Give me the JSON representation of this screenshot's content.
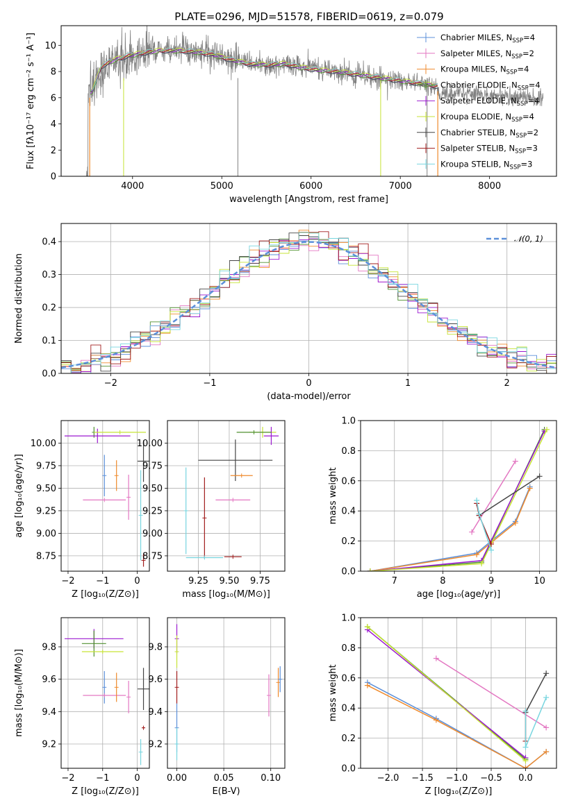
{
  "title": "PLATE=0296, MJD=51578, FIBERID=0619, z=0.079",
  "colors": {
    "Chabrier MILES": "#5b8fd9",
    "Salpeter MILES": "#e377c2",
    "Kroupa MILES": "#ef8a2c",
    "Chabrier ELODIE": "#4f8f2f",
    "Salpeter ELODIE": "#9b19d0",
    "Kroupa ELODIE": "#c6e334",
    "Chabrier STELIB": "#444444",
    "Salpeter STELIB": "#a11c1c",
    "Kroupa STELIB": "#77d5df",
    "normal": "#5b8fd9",
    "data": "#808080"
  },
  "chart_data": [
    {
      "type": "line",
      "panel": "spectrum",
      "title": "PLATE=0296, MJD=51578, FIBERID=0619, z=0.079",
      "xlabel": "wavelength [Angstrom, rest frame]",
      "ylabel": "Flux [fλ10⁻¹⁷ erg cm⁻² s⁻¹ A⁻¹]",
      "xlim": [
        3200,
        8750
      ],
      "ylim": [
        0,
        11.5
      ],
      "xticks": [
        4000,
        5000,
        6000,
        7000,
        8000
      ],
      "yticks": [
        0,
        2,
        4,
        6,
        8,
        10
      ],
      "legend_position": "top-right",
      "continuum": {
        "x": [
          3500,
          3550,
          3650,
          3800,
          3950,
          4100,
          4300,
          4500,
          4700,
          4900,
          5100,
          5300,
          5500,
          5700,
          5900,
          6100,
          6300,
          6500,
          6700,
          6900,
          7100,
          7300,
          7400
        ],
        "y": [
          6.3,
          6.5,
          8.4,
          8.9,
          9.2,
          9.4,
          9.6,
          9.6,
          9.5,
          9.3,
          8.9,
          8.6,
          8.5,
          8.6,
          8.3,
          8.1,
          8.0,
          7.8,
          7.6,
          7.4,
          7.2,
          7.0,
          6.9
        ]
      },
      "series": [
        {
          "name": "Chabrier MILES",
          "label": "Chabrier MILES, N",
          "n_ssp": "=4"
        },
        {
          "name": "Salpeter MILES",
          "label": "Salpeter MILES, N",
          "n_ssp": "=2"
        },
        {
          "name": "Kroupa MILES",
          "label": "Kroupa MILES, N",
          "n_ssp": "=4"
        },
        {
          "name": "Chabrier ELODIE",
          "label": "Chabrier ELODIE, N",
          "n_ssp": "=4"
        },
        {
          "name": "Salpeter ELODIE",
          "label": "Salpeter ELODIE, N",
          "n_ssp": "=4"
        },
        {
          "name": "Kroupa ELODIE",
          "label": "Kroupa ELODIE, N",
          "n_ssp": "=4"
        },
        {
          "name": "Chabrier STELIB",
          "label": "Chabrier STELIB, N",
          "n_ssp": "=2"
        },
        {
          "name": "Salpeter STELIB",
          "label": "Salpeter STELIB, N",
          "n_ssp": "=3"
        },
        {
          "name": "Kroupa STELIB",
          "label": "Kroupa STELIB, N",
          "n_ssp": "=3"
        }
      ]
    },
    {
      "type": "line",
      "panel": "residuals",
      "xlabel": "(data-model)/error",
      "ylabel": "Normed distribution",
      "xlim": [
        -2.5,
        2.5
      ],
      "ylim": [
        0,
        0.455
      ],
      "xticks": [
        -2,
        -1,
        0,
        1,
        2
      ],
      "yticks": [
        0.0,
        0.1,
        0.2,
        0.3,
        0.4
      ],
      "grid": true,
      "legend_position": "top-right",
      "legend_label": "𝒩(0, 1)",
      "bin_width": 0.1,
      "step_series": [
        "Chabrier MILES",
        "Salpeter MILES",
        "Kroupa MILES",
        "Chabrier ELODIE",
        "Salpeter ELODIE",
        "Kroupa ELODIE",
        "Chabrier STELIB",
        "Salpeter STELIB",
        "Kroupa STELIB"
      ]
    },
    {
      "type": "scatter",
      "panel": "age-vs-Z",
      "xlabel": "Z [log₁₀(Z/Z⊙)]",
      "ylabel": "age  [log₁₀(age/yr)]",
      "xlim": [
        -2.2,
        0.35
      ],
      "ylim": [
        8.58,
        10.25
      ],
      "xticks": [
        -2,
        -1,
        0
      ],
      "yticks": [
        8.75,
        9.0,
        9.25,
        9.5,
        9.75,
        10.0
      ],
      "grid": true,
      "points": [
        {
          "series": "Chabrier MILES",
          "x": -0.95,
          "y": 9.64,
          "xerr": 0.0,
          "yerr": 0.23
        },
        {
          "series": "Salpeter MILES",
          "x": -0.95,
          "y": 9.37,
          "xerr": 0.62,
          "yerr": 0.0
        },
        {
          "series": "Salpeter MILES",
          "x": -0.25,
          "y": 9.4,
          "xerr": 0.0,
          "yerr": 0.25
        },
        {
          "series": "Kroupa MILES",
          "x": -0.6,
          "y": 9.64,
          "xerr": 0.0,
          "yerr": 0.17
        },
        {
          "series": "Chabrier ELODIE",
          "x": -1.25,
          "y": 10.12,
          "xerr": 0.0,
          "yerr": 0.06
        },
        {
          "series": "Salpeter ELODIE",
          "x": -1.15,
          "y": 10.08,
          "xerr": 0.95,
          "yerr": 0.08
        },
        {
          "series": "Kroupa ELODIE",
          "x": -0.5,
          "y": 10.12,
          "xerr": 0.75,
          "yerr": 0.0
        },
        {
          "series": "Chabrier STELIB",
          "x": 0.18,
          "y": 9.8,
          "xerr": 0.17,
          "yerr": 0.23
        },
        {
          "series": "Salpeter STELIB",
          "x": 0.18,
          "y": 8.7,
          "xerr": 0.0,
          "yerr": 0.07
        },
        {
          "series": "Kroupa STELIB",
          "x": 0.1,
          "y": 9.2,
          "xerr": 0.0,
          "yerr": 0.5
        }
      ]
    },
    {
      "type": "scatter",
      "panel": "age-vs-mass",
      "xlabel": "mass [log₁₀(M/M⊙)]",
      "xlim": [
        9.0,
        9.95
      ],
      "ylim": [
        8.58,
        10.25
      ],
      "xticks": [
        9.25,
        9.5,
        9.75
      ],
      "yticks": [
        8.75,
        9.0,
        9.25,
        9.5,
        9.75,
        10.0
      ],
      "grid": true,
      "points": [
        {
          "series": "Chabrier STELIB",
          "x": 9.55,
          "y": 9.81,
          "xerr": 0.3,
          "yerr": 0.23
        },
        {
          "series": "Salpeter STELIB",
          "x": 9.3,
          "y": 9.17,
          "xerr": 0.0,
          "yerr": 0.45
        },
        {
          "series": "Salpeter STELIB",
          "x": 9.53,
          "y": 8.74,
          "xerr": 0.07,
          "yerr": 0.0
        },
        {
          "series": "Kroupa STELIB",
          "x": 9.15,
          "y": 9.25,
          "xerr": 0.0,
          "yerr": 0.48
        },
        {
          "series": "Kroupa STELIB",
          "x": 9.3,
          "y": 8.73,
          "xerr": 0.15,
          "yerr": 0.0
        },
        {
          "series": "Salpeter MILES",
          "x": 9.53,
          "y": 9.37,
          "xerr": 0.14,
          "yerr": 0.0
        },
        {
          "series": "Kroupa MILES",
          "x": 9.6,
          "y": 9.64,
          "xerr": 0.09,
          "yerr": 0.0
        },
        {
          "series": "Kroupa ELODIE",
          "x": 9.77,
          "y": 10.12,
          "xerr": 0.11,
          "yerr": 0.06
        },
        {
          "series": "Salpeter ELODIE",
          "x": 9.84,
          "y": 10.08,
          "xerr": 0.06,
          "yerr": 0.1
        },
        {
          "series": "Chabrier ELODIE",
          "x": 9.7,
          "y": 10.12,
          "xerr": 0.14,
          "yerr": 0.0
        }
      ]
    },
    {
      "type": "line",
      "panel": "mass-weight-vs-age",
      "xlabel": "age  [log₁₀(age/yr)]",
      "ylabel": "mass weight",
      "xlim": [
        6.3,
        10.35
      ],
      "ylim": [
        0,
        1.0
      ],
      "xticks": [
        7,
        8,
        9,
        10
      ],
      "yticks": [
        0.0,
        0.2,
        0.4,
        0.6,
        0.8,
        1.0
      ],
      "grid": true,
      "series": [
        {
          "name": "Chabrier MILES",
          "x": [
            6.5,
            8.7,
            9.0,
            9.5,
            9.8
          ],
          "y": [
            0.0,
            0.12,
            0.2,
            0.33,
            0.56
          ]
        },
        {
          "name": "Kroupa MILES",
          "x": [
            6.5,
            8.7,
            9.0,
            9.5,
            9.8
          ],
          "y": [
            0.0,
            0.11,
            0.19,
            0.32,
            0.55
          ]
        },
        {
          "name": "Salpeter MILES",
          "x": [
            8.6,
            9.5
          ],
          "y": [
            0.26,
            0.73
          ]
        },
        {
          "name": "Chabrier ELODIE",
          "x": [
            6.5,
            8.8,
            10.1
          ],
          "y": [
            0.0,
            0.06,
            0.94
          ]
        },
        {
          "name": "Salpeter ELODIE",
          "x": [
            6.5,
            8.8,
            10.1
          ],
          "y": [
            0.0,
            0.07,
            0.93
          ]
        },
        {
          "name": "Kroupa ELODIE",
          "x": [
            6.5,
            8.8,
            10.15
          ],
          "y": [
            0.0,
            0.05,
            0.94
          ]
        },
        {
          "name": "Chabrier STELIB",
          "x": [
            8.75,
            10.0
          ],
          "y": [
            0.37,
            0.63
          ]
        },
        {
          "name": "Salpeter STELIB",
          "x": [
            8.7,
            8.75,
            9.0
          ],
          "y": [
            0.45,
            0.37,
            0.18
          ]
        },
        {
          "name": "Kroupa STELIB",
          "x": [
            8.7,
            8.75,
            9.0
          ],
          "y": [
            0.47,
            0.38,
            0.14
          ]
        }
      ]
    },
    {
      "type": "scatter",
      "panel": "mass-vs-Z",
      "xlabel": "Z [log₁₀(Z/Z⊙)]",
      "ylabel": "mass [log₁₀(M/M⊙)]",
      "xlim": [
        -2.2,
        0.35
      ],
      "ylim": [
        9.05,
        9.98
      ],
      "xticks": [
        -2,
        -1,
        0
      ],
      "yticks": [
        9.2,
        9.4,
        9.6,
        9.8
      ],
      "grid": true,
      "points": [
        {
          "series": "Salpeter ELODIE",
          "x": -1.25,
          "y": 9.85,
          "xerr": 0.85,
          "yerr": 0.06
        },
        {
          "series": "Chabrier ELODIE",
          "x": -1.25,
          "y": 9.82,
          "xerr": 0.35,
          "yerr": 0.08
        },
        {
          "series": "Kroupa ELODIE",
          "x": -1.0,
          "y": 9.77,
          "xerr": 0.6,
          "yerr": 0.0
        },
        {
          "series": "Chabrier MILES",
          "x": -0.95,
          "y": 9.55,
          "xerr": 0.0,
          "yerr": 0.1
        },
        {
          "series": "Salpeter MILES",
          "x": -0.95,
          "y": 9.5,
          "xerr": 0.62,
          "yerr": 0.0
        },
        {
          "series": "Salpeter MILES",
          "x": -0.25,
          "y": 9.49,
          "xerr": 0.0,
          "yerr": 0.1
        },
        {
          "series": "Kroupa MILES",
          "x": -0.6,
          "y": 9.55,
          "xerr": 0.0,
          "yerr": 0.09
        },
        {
          "series": "Chabrier STELIB",
          "x": 0.18,
          "y": 9.54,
          "xerr": 0.17,
          "yerr": 0.13
        },
        {
          "series": "Salpeter STELIB",
          "x": 0.18,
          "y": 9.3,
          "xerr": 0.05,
          "yerr": 0.0
        },
        {
          "series": "Kroupa STELIB",
          "x": 0.1,
          "y": 9.15,
          "xerr": 0.0,
          "yerr": 0.08
        }
      ]
    },
    {
      "type": "scatter",
      "panel": "mass-vs-EBV",
      "xlabel": "E(B-V)",
      "xlim": [
        -0.01,
        0.115
      ],
      "ylim": [
        9.05,
        9.98
      ],
      "xticks": [
        0.0,
        0.05,
        0.1
      ],
      "yticks": [
        9.2,
        9.4,
        9.6,
        9.8
      ],
      "grid": true,
      "points": [
        {
          "series": "Salpeter ELODIE",
          "x": 0.0,
          "y": 9.85,
          "xerr": 0.0,
          "yerr": 0.09
        },
        {
          "series": "Kroupa ELODIE",
          "x": 0.0,
          "y": 9.77,
          "xerr": 0.0,
          "yerr": 0.1
        },
        {
          "series": "Salpeter STELIB",
          "x": 0.0,
          "y": 9.55,
          "xerr": 0.0,
          "yerr": 0.1
        },
        {
          "series": "Chabrier MILES",
          "x": 0.0,
          "y": 9.3,
          "xerr": 0.0,
          "yerr": 0.15
        },
        {
          "series": "Kroupa STELIB",
          "x": 0.0,
          "y": 9.2,
          "xerr": 0.0,
          "yerr": 0.1
        },
        {
          "series": "Salpeter MILES",
          "x": 0.098,
          "y": 9.5,
          "xerr": 0.0,
          "yerr": 0.13
        },
        {
          "series": "Kroupa MILES",
          "x": 0.108,
          "y": 9.58,
          "xerr": 0.0,
          "yerr": 0.09
        },
        {
          "series": "Chabrier MILES",
          "x": 0.11,
          "y": 9.6,
          "xerr": 0.0,
          "yerr": 0.08
        }
      ]
    },
    {
      "type": "line",
      "panel": "mass-weight-vs-Z",
      "xlabel": "Z [log₁₀(Z/Z⊙)]",
      "ylabel": "mass weight",
      "xlim": [
        -2.4,
        0.45
      ],
      "ylim": [
        0,
        1.0
      ],
      "xticks": [
        -2.0,
        -1.5,
        -1.0,
        -0.5,
        0.0
      ],
      "yticks": [
        0.0,
        0.2,
        0.4,
        0.6,
        0.8,
        1.0
      ],
      "grid": true,
      "series": [
        {
          "name": "Chabrier MILES",
          "x": [
            -2.3,
            -1.3,
            0.0,
            0.3
          ],
          "y": [
            0.57,
            0.33,
            0.0,
            0.11
          ]
        },
        {
          "name": "Kroupa MILES",
          "x": [
            -2.3,
            -1.3,
            0.0,
            0.3
          ],
          "y": [
            0.55,
            0.32,
            0.0,
            0.11
          ]
        },
        {
          "name": "Salpeter MILES",
          "x": [
            -1.3,
            0.3
          ],
          "y": [
            0.73,
            0.27
          ]
        },
        {
          "name": "Chabrier ELODIE",
          "x": [
            -2.3,
            0.0
          ],
          "y": [
            0.94,
            0.06
          ]
        },
        {
          "name": "Salpeter ELODIE",
          "x": [
            -2.3,
            0.0
          ],
          "y": [
            0.92,
            0.07
          ]
        },
        {
          "name": "Kroupa ELODIE",
          "x": [
            -2.3,
            0.0
          ],
          "y": [
            0.94,
            0.05
          ]
        },
        {
          "name": "Chabrier STELIB",
          "x": [
            0.0,
            0.3
          ],
          "y": [
            0.37,
            0.63
          ]
        },
        {
          "name": "Salpeter STELIB",
          "x": [
            0.0,
            0.0
          ],
          "y": [
            0.38,
            0.18
          ]
        },
        {
          "name": "Kroupa STELIB",
          "x": [
            0.0,
            0.0,
            0.3
          ],
          "y": [
            0.38,
            0.14,
            0.47
          ]
        }
      ]
    }
  ]
}
